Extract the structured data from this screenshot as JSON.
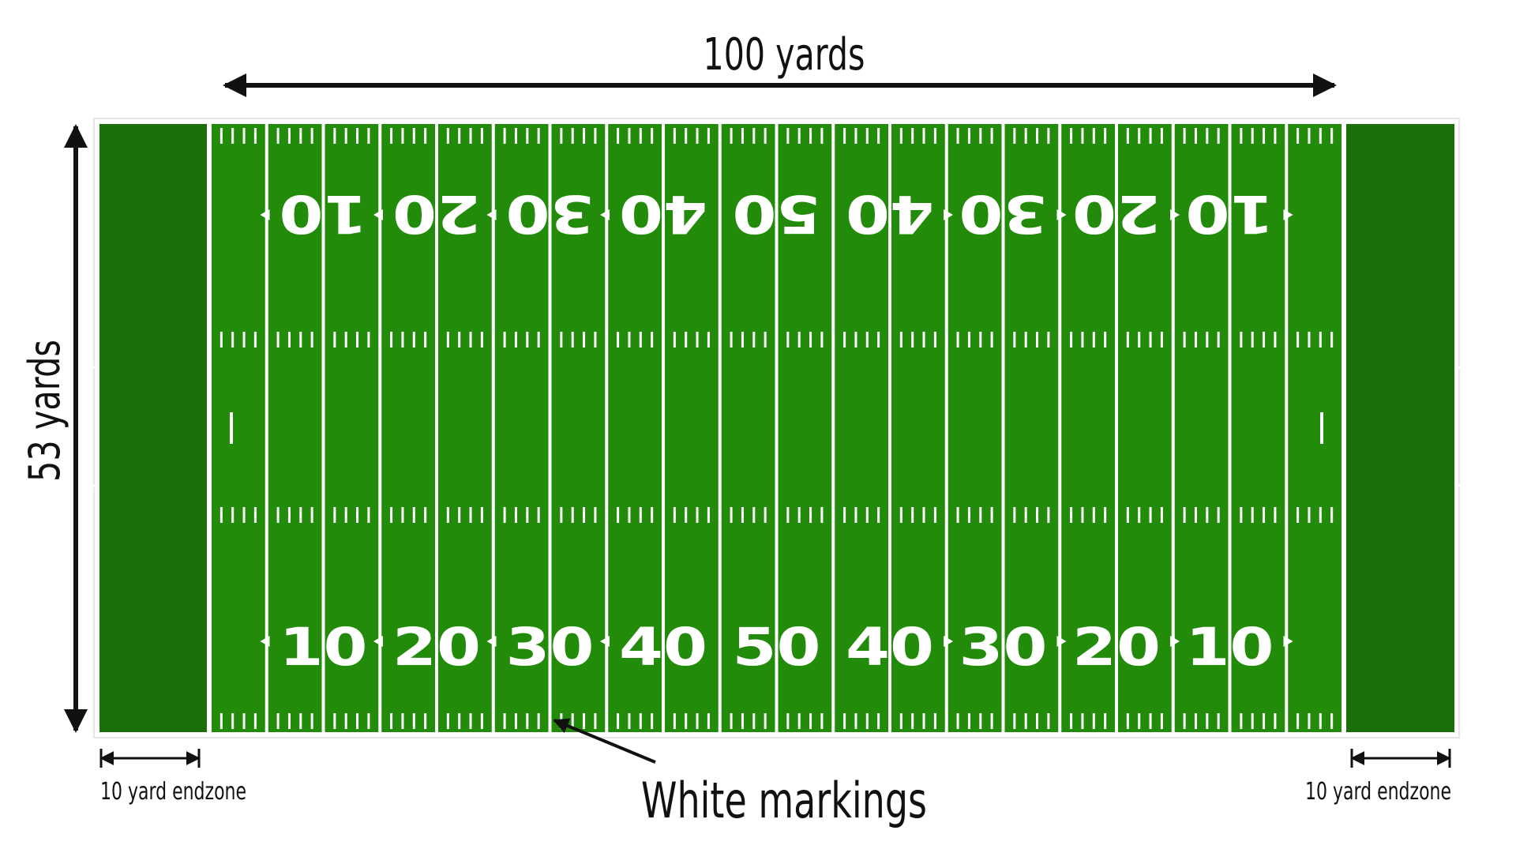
{
  "labels": {
    "length": "100 yards",
    "width": "53 yards",
    "endzone_left": "10 yard endzone",
    "endzone_right": "10 yard endzone",
    "markings": "White markings"
  },
  "field": {
    "yard_numbers": [
      "10",
      "20",
      "30",
      "40",
      "50",
      "40",
      "30",
      "20",
      "10"
    ]
  },
  "colors": {
    "field_green": "#228b0a",
    "endzone_green": "#1b6e08",
    "line_white": "#ffffff",
    "arrow_black": "#111111"
  }
}
